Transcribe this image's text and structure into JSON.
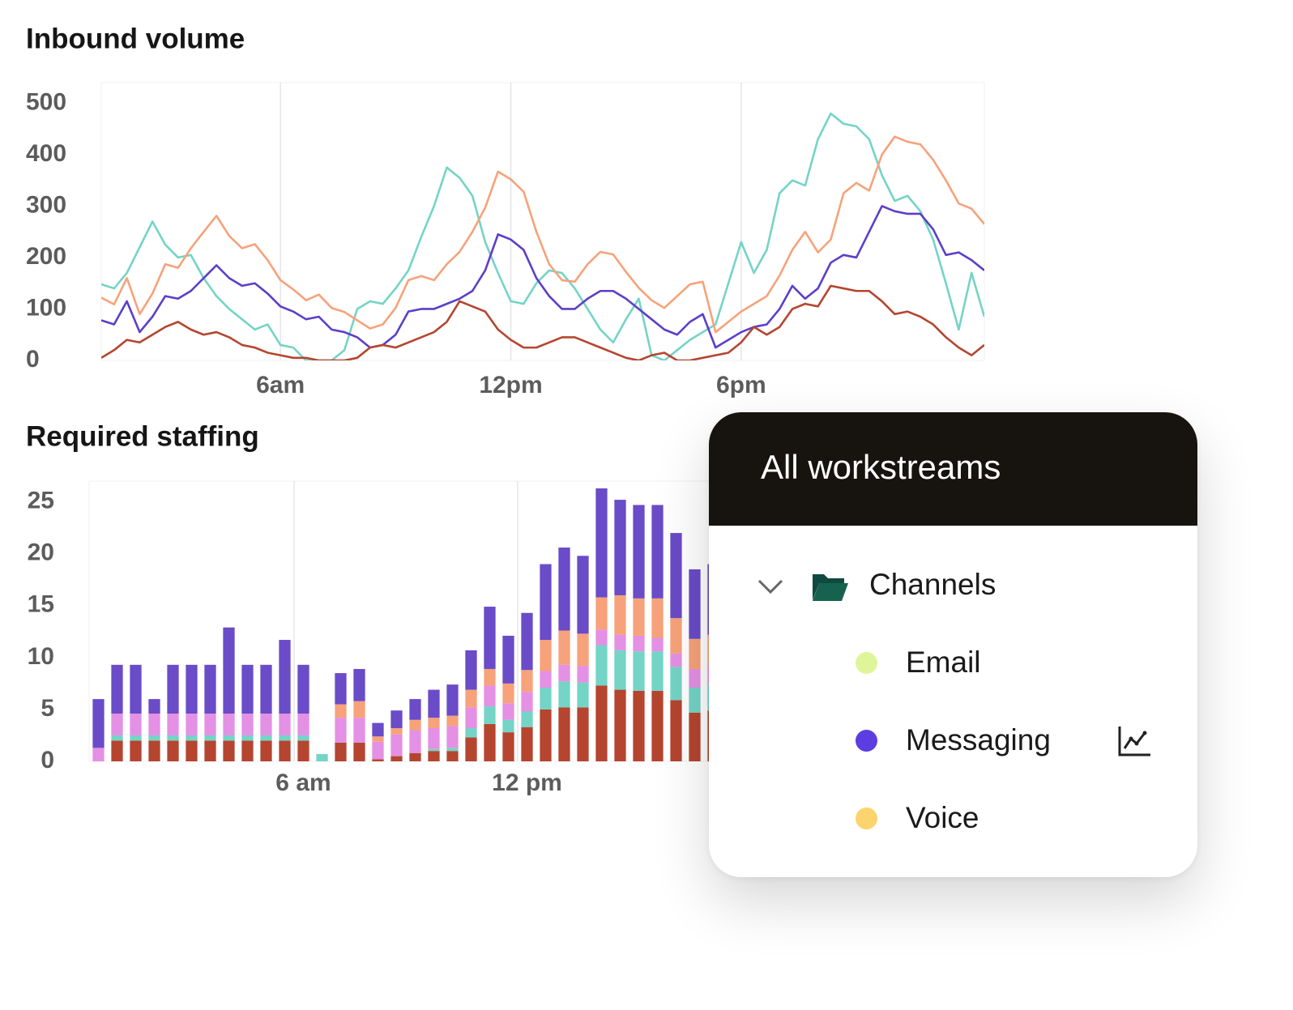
{
  "chart_data": [
    {
      "type": "line",
      "title": "Inbound volume",
      "categories": [
        null,
        null,
        null,
        null,
        null,
        null,
        null,
        null,
        null,
        null,
        null,
        null,
        null,
        null,
        "6am",
        null,
        null,
        null,
        null,
        null,
        null,
        null,
        null,
        null,
        null,
        null,
        null,
        null,
        null,
        null,
        null,
        null,
        "12pm",
        null,
        null,
        null,
        null,
        null,
        null,
        null,
        null,
        null,
        null,
        null,
        null,
        null,
        null,
        null,
        null,
        null,
        "6pm",
        null,
        null,
        null,
        null,
        null,
        null,
        null,
        null,
        null,
        null,
        null,
        null,
        null,
        null,
        null,
        null,
        null,
        null,
        null
      ],
      "ylim": [
        0,
        540
      ],
      "yticks": [
        0,
        100,
        200,
        300,
        400,
        500
      ],
      "grid": true,
      "series": [
        {
          "color": "#74d4c6",
          "values": [
            148,
            140,
            170,
            220,
            270,
            225,
            200,
            205,
            160,
            125,
            100,
            80,
            60,
            70,
            30,
            25,
            0,
            0,
            0,
            20,
            100,
            115,
            110,
            140,
            175,
            240,
            300,
            375,
            355,
            320,
            230,
            170,
            115,
            110,
            150,
            175,
            170,
            140,
            100,
            60,
            35,
            80,
            120,
            10,
            0,
            20,
            40,
            55,
            70,
            150,
            230,
            170,
            215,
            325,
            350,
            340,
            430,
            480,
            460,
            455,
            430,
            360,
            310,
            320,
            290,
            235,
            150,
            60,
            170,
            85
          ]
        },
        {
          "color": "#f7a27a",
          "values": [
            122,
            109,
            160,
            90,
            130,
            187,
            180,
            218,
            250,
            281,
            242,
            218,
            226,
            195,
            156,
            138,
            117,
            128,
            102,
            94,
            78,
            62,
            70,
            102,
            156,
            164,
            156,
            187,
            211,
            250,
            297,
            367,
            352,
            328,
            250,
            187,
            156,
            153,
            187,
            211,
            206,
            172,
            141,
            117,
            102,
            125,
            148,
            153,
            55,
            75,
            95,
            110,
            125,
            165,
            215,
            250,
            210,
            235,
            325,
            345,
            330,
            400,
            435,
            425,
            420,
            390,
            350,
            305,
            295,
            265
          ]
        },
        {
          "color": "#5b3fc8",
          "values": [
            78,
            70,
            115,
            55,
            85,
            125,
            120,
            135,
            160,
            185,
            160,
            145,
            150,
            130,
            105,
            95,
            80,
            85,
            60,
            55,
            45,
            25,
            30,
            50,
            95,
            100,
            100,
            110,
            120,
            135,
            175,
            245,
            235,
            215,
            160,
            125,
            100,
            100,
            120,
            135,
            135,
            120,
            100,
            80,
            60,
            50,
            75,
            90,
            25,
            40,
            55,
            65,
            70,
            100,
            145,
            120,
            140,
            190,
            205,
            200,
            250,
            300,
            290,
            285,
            285,
            255,
            205,
            210,
            195,
            175
          ]
        },
        {
          "color": "#b5452f",
          "values": [
            5,
            20,
            40,
            35,
            50,
            65,
            75,
            60,
            50,
            55,
            45,
            30,
            25,
            15,
            10,
            5,
            5,
            0,
            0,
            0,
            5,
            25,
            30,
            25,
            35,
            45,
            55,
            75,
            115,
            105,
            95,
            60,
            40,
            25,
            25,
            35,
            45,
            45,
            35,
            25,
            15,
            5,
            0,
            10,
            15,
            0,
            0,
            5,
            10,
            15,
            35,
            65,
            50,
            65,
            100,
            110,
            105,
            145,
            140,
            135,
            135,
            115,
            90,
            95,
            85,
            70,
            45,
            25,
            10,
            30
          ]
        }
      ]
    },
    {
      "type": "stacked_bar",
      "title": "Required staffing",
      "categories": [
        null,
        null,
        null,
        null,
        null,
        null,
        null,
        null,
        null,
        null,
        null,
        "6 am",
        null,
        null,
        null,
        null,
        null,
        null,
        null,
        null,
        null,
        null,
        null,
        "12 pm",
        null,
        null,
        null,
        null,
        null,
        null,
        null,
        null,
        null,
        null
      ],
      "ylim": [
        0,
        27
      ],
      "yticks": [
        0,
        5,
        10,
        15,
        20,
        25
      ],
      "grid": true,
      "series": [
        {
          "color": "#b5452f",
          "values": [
            0,
            2,
            2,
            2,
            2,
            2,
            2,
            2,
            2,
            2,
            2,
            2,
            0,
            1.8,
            1.8,
            0.2,
            0.5,
            0.8,
            1,
            1,
            2.3,
            3.6,
            2.8,
            3.3,
            5,
            5.2,
            5.2,
            7.3,
            6.9,
            6.8,
            6.8,
            5.9,
            4.7,
            4.9
          ]
        },
        {
          "color": "#74d4c6",
          "values": [
            0,
            0.5,
            0.5,
            0.5,
            0.5,
            0.5,
            0.5,
            0.5,
            0.5,
            0.5,
            0.5,
            0.5,
            0.7,
            0,
            0,
            0,
            0,
            0,
            0.2,
            0.3,
            0.9,
            1.7,
            1.2,
            1.5,
            2.1,
            2.5,
            2.4,
            3.9,
            3.8,
            3.8,
            3.8,
            3.2,
            2.4,
            2.5
          ]
        },
        {
          "color": "#e490e4",
          "values": [
            1.3,
            2.1,
            2.1,
            2.1,
            2.1,
            2.1,
            2.1,
            2.1,
            2.1,
            2.1,
            2.1,
            2.1,
            0,
            2.4,
            2.4,
            1.7,
            2.1,
            2.2,
            2.0,
            2.1,
            2.0,
            2.0,
            1.6,
            1.9,
            1.6,
            1.6,
            1.6,
            1.5,
            1.5,
            1.5,
            1.3,
            1.3,
            1.8,
            1.8
          ]
        },
        {
          "color": "#f7a27a",
          "values": [
            0,
            0,
            0,
            0,
            0,
            0,
            0,
            0,
            0,
            0,
            0,
            0,
            0,
            1.3,
            1.6,
            0.5,
            0.6,
            1.0,
            1.0,
            1.0,
            1.7,
            1.6,
            1.9,
            2.1,
            3.0,
            3.3,
            3.1,
            3.1,
            3.8,
            3.6,
            3.8,
            3.4,
            2.9,
            3.0
          ]
        },
        {
          "color": "#6a4bc8",
          "values": [
            4.7,
            4.7,
            4.7,
            1.4,
            4.7,
            4.7,
            4.7,
            8.3,
            4.7,
            4.7,
            7.1,
            4.7,
            0,
            3.0,
            3.1,
            1.3,
            1.7,
            2.0,
            2.7,
            3.0,
            3.8,
            6.0,
            4.6,
            5.5,
            7.3,
            8.0,
            7.5,
            10.5,
            9.2,
            9.0,
            9.0,
            8.2,
            6.7,
            6.8
          ]
        }
      ]
    }
  ],
  "panel": {
    "title": "All workstreams",
    "group": "Channels",
    "items": [
      {
        "label": "Email",
        "color": "#dff59a"
      },
      {
        "label": "Messaging",
        "color": "#5b3de0"
      },
      {
        "label": "Voice",
        "color": "#fbd46e"
      }
    ]
  }
}
